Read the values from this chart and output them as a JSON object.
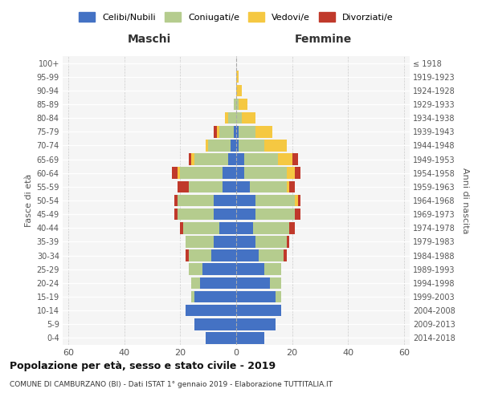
{
  "age_groups": [
    "0-4",
    "5-9",
    "10-14",
    "15-19",
    "20-24",
    "25-29",
    "30-34",
    "35-39",
    "40-44",
    "45-49",
    "50-54",
    "55-59",
    "60-64",
    "65-69",
    "70-74",
    "75-79",
    "80-84",
    "85-89",
    "90-94",
    "95-99",
    "100+"
  ],
  "birth_years": [
    "2014-2018",
    "2009-2013",
    "2004-2008",
    "1999-2003",
    "1994-1998",
    "1989-1993",
    "1984-1988",
    "1979-1983",
    "1974-1978",
    "1969-1973",
    "1964-1968",
    "1959-1963",
    "1954-1958",
    "1949-1953",
    "1944-1948",
    "1939-1943",
    "1934-1938",
    "1929-1933",
    "1924-1928",
    "1919-1923",
    "≤ 1918"
  ],
  "maschi": {
    "celibi": [
      11,
      15,
      18,
      15,
      13,
      12,
      9,
      8,
      6,
      8,
      8,
      5,
      5,
      3,
      2,
      1,
      0,
      0,
      0,
      0,
      0
    ],
    "coniugati": [
      0,
      0,
      0,
      1,
      3,
      5,
      8,
      10,
      13,
      13,
      13,
      12,
      15,
      12,
      8,
      5,
      3,
      1,
      0,
      0,
      0
    ],
    "vedovi": [
      0,
      0,
      0,
      0,
      0,
      0,
      0,
      0,
      0,
      0,
      0,
      0,
      1,
      1,
      1,
      1,
      1,
      0,
      0,
      0,
      0
    ],
    "divorziati": [
      0,
      0,
      0,
      0,
      0,
      0,
      1,
      0,
      1,
      1,
      1,
      4,
      2,
      1,
      0,
      1,
      0,
      0,
      0,
      0,
      0
    ]
  },
  "femmine": {
    "nubili": [
      10,
      14,
      16,
      14,
      12,
      10,
      8,
      7,
      6,
      7,
      7,
      5,
      3,
      3,
      1,
      1,
      0,
      0,
      0,
      0,
      0
    ],
    "coniugate": [
      0,
      0,
      0,
      2,
      4,
      6,
      9,
      11,
      13,
      14,
      14,
      13,
      15,
      12,
      9,
      6,
      2,
      1,
      0,
      0,
      0
    ],
    "vedove": [
      0,
      0,
      0,
      0,
      0,
      0,
      0,
      0,
      0,
      0,
      1,
      1,
      3,
      5,
      8,
      6,
      5,
      3,
      2,
      1,
      0
    ],
    "divorziate": [
      0,
      0,
      0,
      0,
      0,
      0,
      1,
      1,
      2,
      2,
      1,
      2,
      2,
      2,
      0,
      0,
      0,
      0,
      0,
      0,
      0
    ]
  },
  "colors": {
    "celibi": "#4472c4",
    "coniugati": "#b5cc8e",
    "vedovi": "#f5c842",
    "divorziati": "#c0392b"
  },
  "xlim": 62,
  "xticks": [
    -60,
    -40,
    -20,
    0,
    20,
    40,
    60
  ],
  "title": "Popolazione per età, sesso e stato civile - 2019",
  "subtitle": "COMUNE DI CAMBURZANO (BI) - Dati ISTAT 1° gennaio 2019 - Elaborazione TUTTITALIA.IT",
  "ylabel": "Fasce di età",
  "ylabel_right": "Anni di nascita",
  "legend_labels": [
    "Celibi/Nubili",
    "Coniugati/e",
    "Vedovi/e",
    "Divorziati/e"
  ],
  "maschi_label": "Maschi",
  "femmine_label": "Femmine",
  "bg_color": "#f5f5f5",
  "bar_bg_color": "#e8e8e8"
}
